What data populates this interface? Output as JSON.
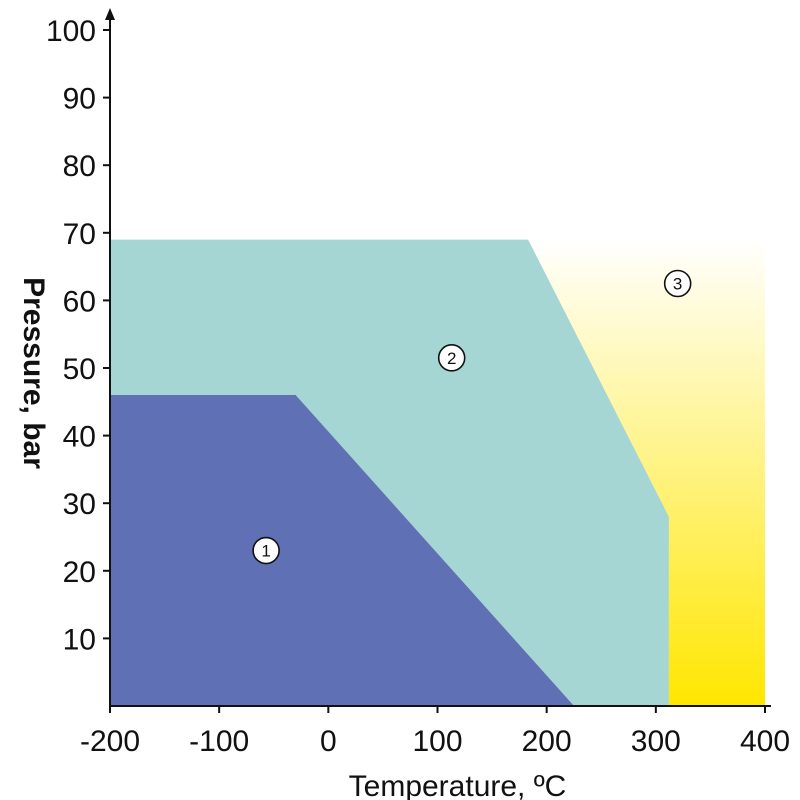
{
  "chart_data": {
    "type": "area",
    "title": "",
    "xlabel": "Temperature, ºC",
    "ylabel": "Pressure, bar",
    "xlim": [
      -200,
      400
    ],
    "ylim": [
      0,
      100
    ],
    "x_ticks": [
      -200,
      -100,
      0,
      100,
      200,
      300,
      400
    ],
    "x_tick_labels": [
      "-200",
      "-100",
      "0",
      "100",
      "200",
      "300",
      "400"
    ],
    "y_ticks": [
      10,
      20,
      30,
      40,
      50,
      60,
      70,
      80,
      90,
      100
    ],
    "y_tick_labels": [
      "10",
      "20",
      "30",
      "40",
      "50",
      "60",
      "70",
      "80",
      "90",
      "100"
    ],
    "grid": false,
    "regions": [
      {
        "label": "3",
        "label_position": [
          320,
          62.5
        ],
        "color": "#FFE600",
        "color_light": "#FFFFFF",
        "polygon": [
          [
            183,
            69
          ],
          [
            400,
            69
          ],
          [
            400,
            0
          ],
          [
            312,
            0
          ],
          [
            312,
            28
          ]
        ]
      },
      {
        "label": "2",
        "label_position": [
          113,
          51.5
        ],
        "color": "#A5D6D4",
        "polygon": [
          [
            -200,
            69
          ],
          [
            183,
            69
          ],
          [
            312,
            28
          ],
          [
            312,
            0
          ],
          [
            -200,
            0
          ]
        ]
      },
      {
        "label": "1",
        "label_position": [
          -57,
          23
        ],
        "color": "#6070B5",
        "polygon": [
          [
            -200,
            46
          ],
          [
            -30,
            46
          ],
          [
            225,
            0
          ],
          [
            -200,
            0
          ]
        ]
      }
    ]
  }
}
